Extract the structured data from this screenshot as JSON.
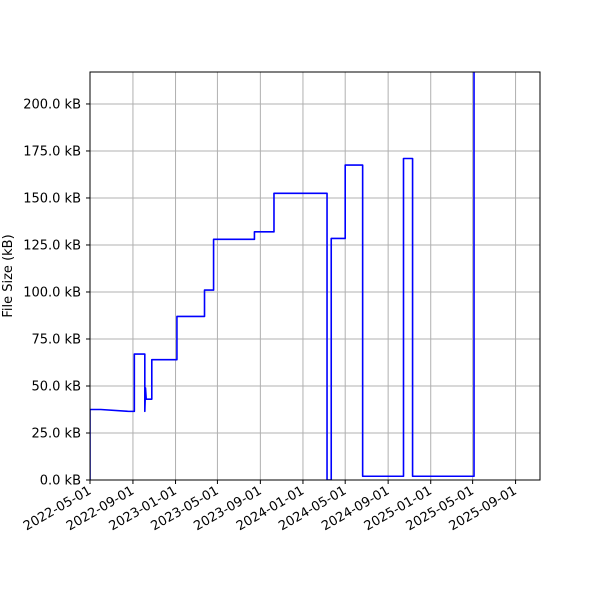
{
  "chart_data": {
    "type": "line",
    "title": "",
    "xlabel": "",
    "ylabel": "File Size (kB)",
    "grid": true,
    "legend": "none",
    "x_type": "date",
    "xlim": [
      "2022-05-01",
      "2025-11-10"
    ],
    "ylim": [
      0,
      217
    ],
    "x_ticks": [
      "2022-05-01",
      "2022-09-01",
      "2023-01-01",
      "2023-05-01",
      "2023-09-01",
      "2024-01-01",
      "2024-05-01",
      "2024-09-01",
      "2025-01-01",
      "2025-05-01",
      "2025-09-01"
    ],
    "y_ticks": [
      0,
      25,
      50,
      75,
      100,
      125,
      150,
      175,
      200
    ],
    "y_tick_labels": [
      "0.0 kB",
      "25.0 kB",
      "50.0 kB",
      "75.0 kB",
      "100.0 kB",
      "125.0 kB",
      "150.0 kB",
      "175.0 kB",
      "200.0 kB"
    ],
    "series": [
      {
        "color": "#0000ff",
        "step": true,
        "points": [
          [
            "2022-05-01",
            0
          ],
          [
            "2022-05-01",
            37.5
          ],
          [
            "2022-06-01",
            37.5
          ],
          [
            "2022-08-20",
            36.5
          ],
          [
            "2022-09-05",
            36.5
          ],
          [
            "2022-09-05",
            67
          ],
          [
            "2022-10-05",
            67
          ],
          [
            "2022-10-05",
            36.5
          ],
          [
            "2022-10-07",
            49
          ],
          [
            "2022-10-09",
            43
          ],
          [
            "2022-10-25",
            43
          ],
          [
            "2022-10-25",
            64
          ],
          [
            "2023-01-05",
            64
          ],
          [
            "2023-01-05",
            87
          ],
          [
            "2023-03-25",
            87
          ],
          [
            "2023-03-25",
            101
          ],
          [
            "2023-04-20",
            101
          ],
          [
            "2023-04-20",
            128
          ],
          [
            "2023-08-15",
            128
          ],
          [
            "2023-08-15",
            132
          ],
          [
            "2023-10-10",
            132
          ],
          [
            "2023-10-10",
            152.5
          ],
          [
            "2024-03-10",
            152.5
          ],
          [
            "2024-03-10",
            0
          ],
          [
            "2024-03-22",
            0
          ],
          [
            "2024-03-22",
            128.5
          ],
          [
            "2024-05-01",
            128.5
          ],
          [
            "2024-05-01",
            167.5
          ],
          [
            "2024-06-20",
            167.5
          ],
          [
            "2024-06-20",
            2
          ],
          [
            "2024-10-15",
            2
          ],
          [
            "2024-10-15",
            171
          ],
          [
            "2024-11-10",
            171
          ],
          [
            "2024-11-10",
            2
          ],
          [
            "2025-05-05",
            2
          ],
          [
            "2025-05-05",
            217
          ]
        ]
      }
    ]
  }
}
